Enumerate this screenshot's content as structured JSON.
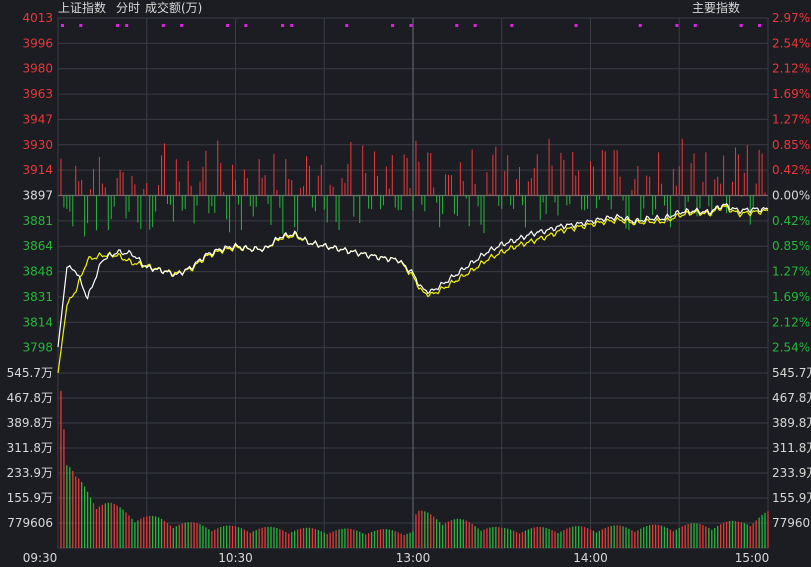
{
  "header": {
    "title": "上证指数",
    "mode": "分时",
    "volume_label": "成交额(万)",
    "right_label": "主要指数"
  },
  "colors": {
    "background": "#1c1d22",
    "up": "#e8383a",
    "down": "#25b83a",
    "grid": "#3a3d45",
    "price_line": "#ffffff",
    "avg_line": "#f2f20a",
    "marker": "#e020e0",
    "text": "#d8d8d8"
  },
  "chart_data": {
    "type": "line",
    "title": "上证指数",
    "previous_close": 3897,
    "price_ticks_left": [
      "4013",
      "3996",
      "3980",
      "3963",
      "3947",
      "3930",
      "3914",
      "3897",
      "3881",
      "3864",
      "3848",
      "3831",
      "3814",
      "3798"
    ],
    "percent_ticks_right": [
      "2.97%",
      "2.54%",
      "2.12%",
      "1.69%",
      "1.27%",
      "0.85%",
      "0.42%",
      "0.00%",
      "0.42%",
      "0.85%",
      "1.27%",
      "1.69%",
      "2.12%",
      "2.54%"
    ],
    "price_range": [
      3781,
      4013
    ],
    "volume_ticks": [
      "545.7万",
      "467.8万",
      "389.8万",
      "311.8万",
      "233.9万",
      "155.9万",
      "779606"
    ],
    "volume_range": [
      0,
      5457000
    ],
    "time_ticks": [
      "09:30",
      "10:30",
      "13:00",
      "14:00",
      "15:00"
    ],
    "session_minutes": 240,
    "price_series": {
      "minutes": [
        0,
        3,
        6,
        10,
        15,
        20,
        25,
        30,
        35,
        40,
        45,
        50,
        55,
        60,
        65,
        70,
        75,
        80,
        85,
        90,
        95,
        100,
        105,
        110,
        115,
        120,
        123,
        126,
        130,
        135,
        140,
        145,
        150,
        155,
        160,
        165,
        170,
        175,
        180,
        185,
        190,
        195,
        200,
        205,
        210,
        215,
        220,
        225,
        230,
        235,
        240
      ],
      "values": [
        3798,
        3850,
        3848,
        3830,
        3855,
        3860,
        3859,
        3850,
        3848,
        3845,
        3850,
        3858,
        3862,
        3864,
        3862,
        3862,
        3870,
        3872,
        3866,
        3864,
        3862,
        3860,
        3858,
        3856,
        3855,
        3846,
        3836,
        3834,
        3839,
        3846,
        3853,
        3860,
        3865,
        3868,
        3872,
        3874,
        3877,
        3878,
        3880,
        3882,
        3883,
        3880,
        3882,
        3882,
        3886,
        3887,
        3886,
        3891,
        3887,
        3888,
        3888
      ]
    },
    "avg_series": {
      "minutes": [
        0,
        3,
        6,
        10,
        15,
        20,
        25,
        30,
        35,
        40,
        45,
        50,
        55,
        60,
        65,
        70,
        75,
        80,
        85,
        90,
        95,
        100,
        105,
        110,
        115,
        120,
        123,
        126,
        130,
        135,
        140,
        145,
        150,
        155,
        160,
        165,
        170,
        175,
        180,
        185,
        190,
        195,
        200,
        205,
        210,
        215,
        220,
        225,
        230,
        235,
        240
      ],
      "values": [
        3781,
        3825,
        3835,
        3855,
        3858,
        3858,
        3853,
        3851,
        3848,
        3846,
        3849,
        3857,
        3861,
        3863,
        3862,
        3862,
        3869,
        3871,
        3866,
        3864,
        3862,
        3860,
        3858,
        3856,
        3855,
        3844,
        3834,
        3832,
        3836,
        3842,
        3848,
        3855,
        3860,
        3864,
        3867,
        3870,
        3874,
        3876,
        3878,
        3880,
        3881,
        3879,
        3880,
        3880,
        3884,
        3886,
        3885,
        3890,
        3885,
        3886,
        3887
      ]
    },
    "volume_series": {
      "minutes": [
        1,
        3,
        6,
        10,
        15,
        20,
        30,
        45,
        60,
        90,
        120,
        121,
        150,
        180,
        210,
        230,
        240
      ],
      "values": [
        4900000,
        2500000,
        1950000,
        1700000,
        1400000,
        1150000,
        900000,
        700000,
        600000,
        540000,
        500000,
        1050000,
        550000,
        600000,
        650000,
        750000,
        1000000
      ]
    }
  }
}
